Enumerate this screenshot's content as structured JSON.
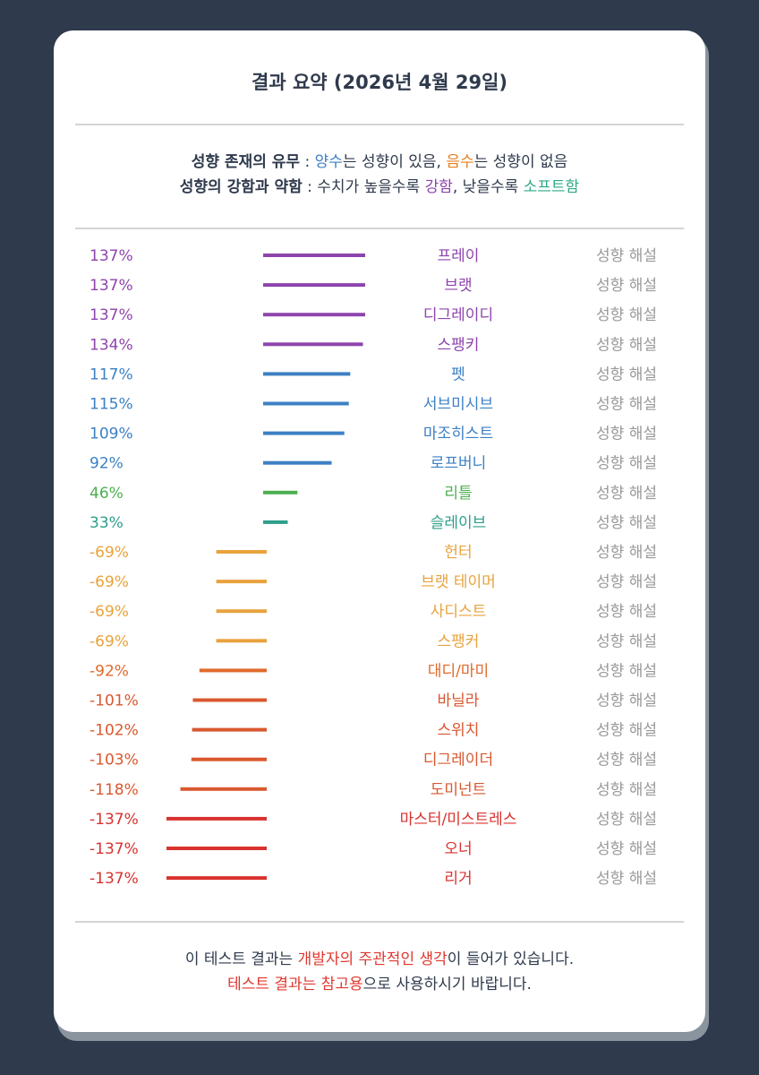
{
  "title": "결과 요약 (2026년 4월 29일)",
  "legend": {
    "line1": {
      "label": "성향 존재의 유무",
      "sep": " : ",
      "pos_word": "양수",
      "pos_rest": "는 성향이 있음, ",
      "neg_word": "음수",
      "neg_rest": "는 성향이 없음"
    },
    "line2": {
      "label": "성향의 강함과 약함",
      "sep": " : 수치가 높을수록 ",
      "strong_word": "강함",
      "mid": ", 낮을수록 ",
      "soft_word": "소프트함"
    }
  },
  "row_link_label": "성향 해설",
  "colors": {
    "purple": "#8e44ad",
    "blue": "#3d80c4",
    "green": "#4caf50",
    "teal": "#2e9e8a",
    "yellow": "#e8a33d",
    "orange": "#e06a2c",
    "redorange": "#d9582f",
    "red": "#d9322f",
    "gray": "#999999"
  },
  "chart_data": {
    "type": "bar",
    "orientation": "horizontal",
    "categories": [
      "프레이",
      "브랫",
      "디그레이디",
      "스팽키",
      "펫",
      "서브미시브",
      "마조히스트",
      "로프버니",
      "리틀",
      "슬레이브",
      "헌터",
      "브랫 테이머",
      "사디스트",
      "스팽커",
      "대디/마미",
      "바닐라",
      "스위치",
      "디그레이더",
      "도미넌트",
      "마스터/미스트레스",
      "오너",
      "리거"
    ],
    "values": [
      137,
      137,
      137,
      134,
      117,
      115,
      109,
      92,
      46,
      33,
      -69,
      -69,
      -69,
      -69,
      -92,
      -101,
      -102,
      -103,
      -118,
      -137,
      -137,
      -137
    ],
    "value_labels": [
      "137%",
      "137%",
      "137%",
      "134%",
      "117%",
      "115%",
      "109%",
      "92%",
      "46%",
      "33%",
      "-69%",
      "-69%",
      "-69%",
      "-69%",
      "-92%",
      "-101%",
      "-102%",
      "-103%",
      "-118%",
      "-137%",
      "-137%",
      "-137%"
    ],
    "color_keys": [
      "purple",
      "purple",
      "purple",
      "purple",
      "blue",
      "blue",
      "blue",
      "blue",
      "green",
      "teal",
      "yellow",
      "yellow",
      "yellow",
      "yellow",
      "orange",
      "redorange",
      "redorange",
      "redorange",
      "redorange",
      "red",
      "red",
      "red"
    ],
    "xlim": [
      -137,
      137
    ]
  },
  "footer": {
    "line1_pre": "이 테스트 결과는 ",
    "line1_red": "개발자의 주관적인 생각",
    "line1_post": "이 들어가 있습니다.",
    "line2_red": "테스트 결과는 참고용",
    "line2_post": "으로 사용하시기 바랍니다."
  }
}
